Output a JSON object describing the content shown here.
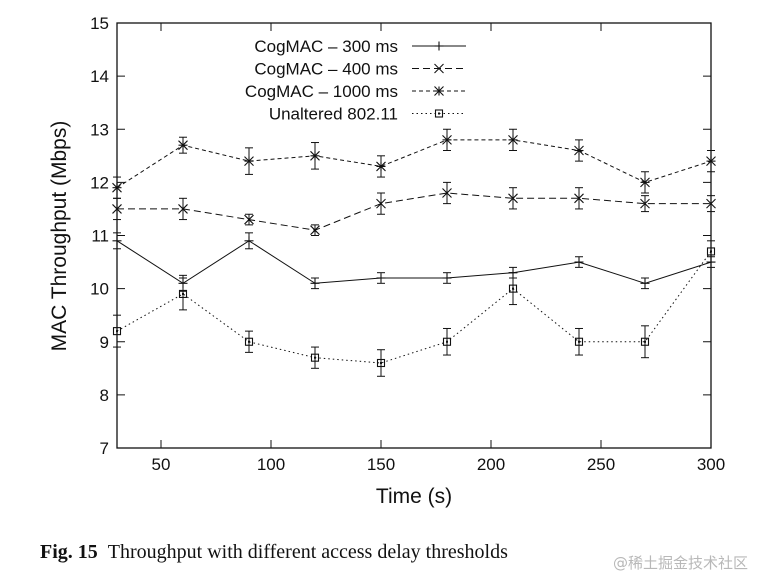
{
  "chart_data": {
    "type": "line",
    "xlabel": "Time (s)",
    "ylabel": "MAC Throughput (Mbps)",
    "xlim": [
      30,
      300
    ],
    "ylim": [
      7,
      15
    ],
    "xticks": [
      50,
      100,
      150,
      200,
      250,
      300
    ],
    "yticks": [
      7,
      8,
      9,
      10,
      11,
      12,
      13,
      14,
      15
    ],
    "grid": false,
    "legend_position": "top-center",
    "x": [
      30,
      60,
      90,
      120,
      150,
      180,
      210,
      240,
      270,
      300
    ],
    "series": [
      {
        "name": "CogMAC – 300 ms",
        "marker": "plus",
        "dash": "solid",
        "values": [
          10.9,
          10.1,
          10.9,
          10.1,
          10.2,
          10.2,
          10.3,
          10.5,
          10.1,
          10.5
        ],
        "error": [
          0.15,
          0.15,
          0.15,
          0.1,
          0.1,
          0.1,
          0.1,
          0.1,
          0.1,
          0.1
        ]
      },
      {
        "name": "CogMAC – 400 ms",
        "marker": "x",
        "dash": "dashed",
        "values": [
          11.5,
          11.5,
          11.3,
          11.1,
          11.6,
          11.8,
          11.7,
          11.7,
          11.6,
          11.6
        ],
        "error": [
          0.2,
          0.2,
          0.1,
          0.1,
          0.2,
          0.2,
          0.2,
          0.2,
          0.15,
          0.15
        ]
      },
      {
        "name": "CogMAC – 1000 ms",
        "marker": "star",
        "dash": "dashed-short",
        "values": [
          11.9,
          12.7,
          12.4,
          12.5,
          12.3,
          12.8,
          12.8,
          12.6,
          12.0,
          12.4
        ],
        "error": [
          0.2,
          0.15,
          0.25,
          0.25,
          0.2,
          0.2,
          0.2,
          0.2,
          0.2,
          0.2
        ]
      },
      {
        "name": "Unaltered 802.11",
        "marker": "square",
        "dash": "dotted",
        "values": [
          9.2,
          9.9,
          9.0,
          8.7,
          8.6,
          9.0,
          10.0,
          9.0,
          9.0,
          10.7
        ],
        "error": [
          0.3,
          0.3,
          0.2,
          0.2,
          0.25,
          0.25,
          0.3,
          0.25,
          0.3,
          0.2
        ]
      }
    ]
  },
  "caption": {
    "fig_number": "Fig. 15",
    "text": "Throughput with different access delay thresholds"
  },
  "watermark": "@稀土掘金技术社区"
}
